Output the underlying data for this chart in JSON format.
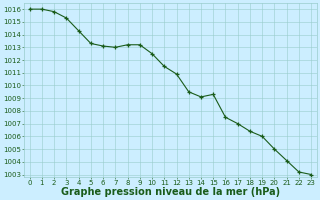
{
  "x": [
    0,
    1,
    2,
    3,
    4,
    5,
    6,
    7,
    8,
    9,
    10,
    11,
    12,
    13,
    14,
    15,
    16,
    17,
    18,
    19,
    20,
    21,
    22,
    23
  ],
  "y": [
    1016.0,
    1016.0,
    1015.8,
    1015.3,
    1014.3,
    1013.3,
    1013.1,
    1013.0,
    1013.2,
    1013.2,
    1012.5,
    1011.5,
    1010.9,
    1009.5,
    1009.1,
    1009.3,
    1007.5,
    1007.0,
    1006.4,
    1006.0,
    1005.0,
    1004.1,
    1003.2,
    1003.0
  ],
  "ylim_min": 1003,
  "ylim_max": 1016.5,
  "xlim_min": -0.5,
  "xlim_max": 23.5,
  "yticks": [
    1003,
    1004,
    1005,
    1006,
    1007,
    1008,
    1009,
    1010,
    1011,
    1012,
    1013,
    1014,
    1015,
    1016
  ],
  "xticks": [
    0,
    1,
    2,
    3,
    4,
    5,
    6,
    7,
    8,
    9,
    10,
    11,
    12,
    13,
    14,
    15,
    16,
    17,
    18,
    19,
    20,
    21,
    22,
    23
  ],
  "line_color": "#1a5c1a",
  "marker": "+",
  "markersize": 3.5,
  "linewidth": 0.8,
  "bg_color": "#cceeff",
  "grid_color": "#99cccc",
  "xlabel": "Graphe pression niveau de la mer (hPa)",
  "xlabel_color": "#1a5c1a",
  "tick_color": "#1a5c1a",
  "tick_fontsize": 5.0,
  "xlabel_fontsize": 7.0
}
